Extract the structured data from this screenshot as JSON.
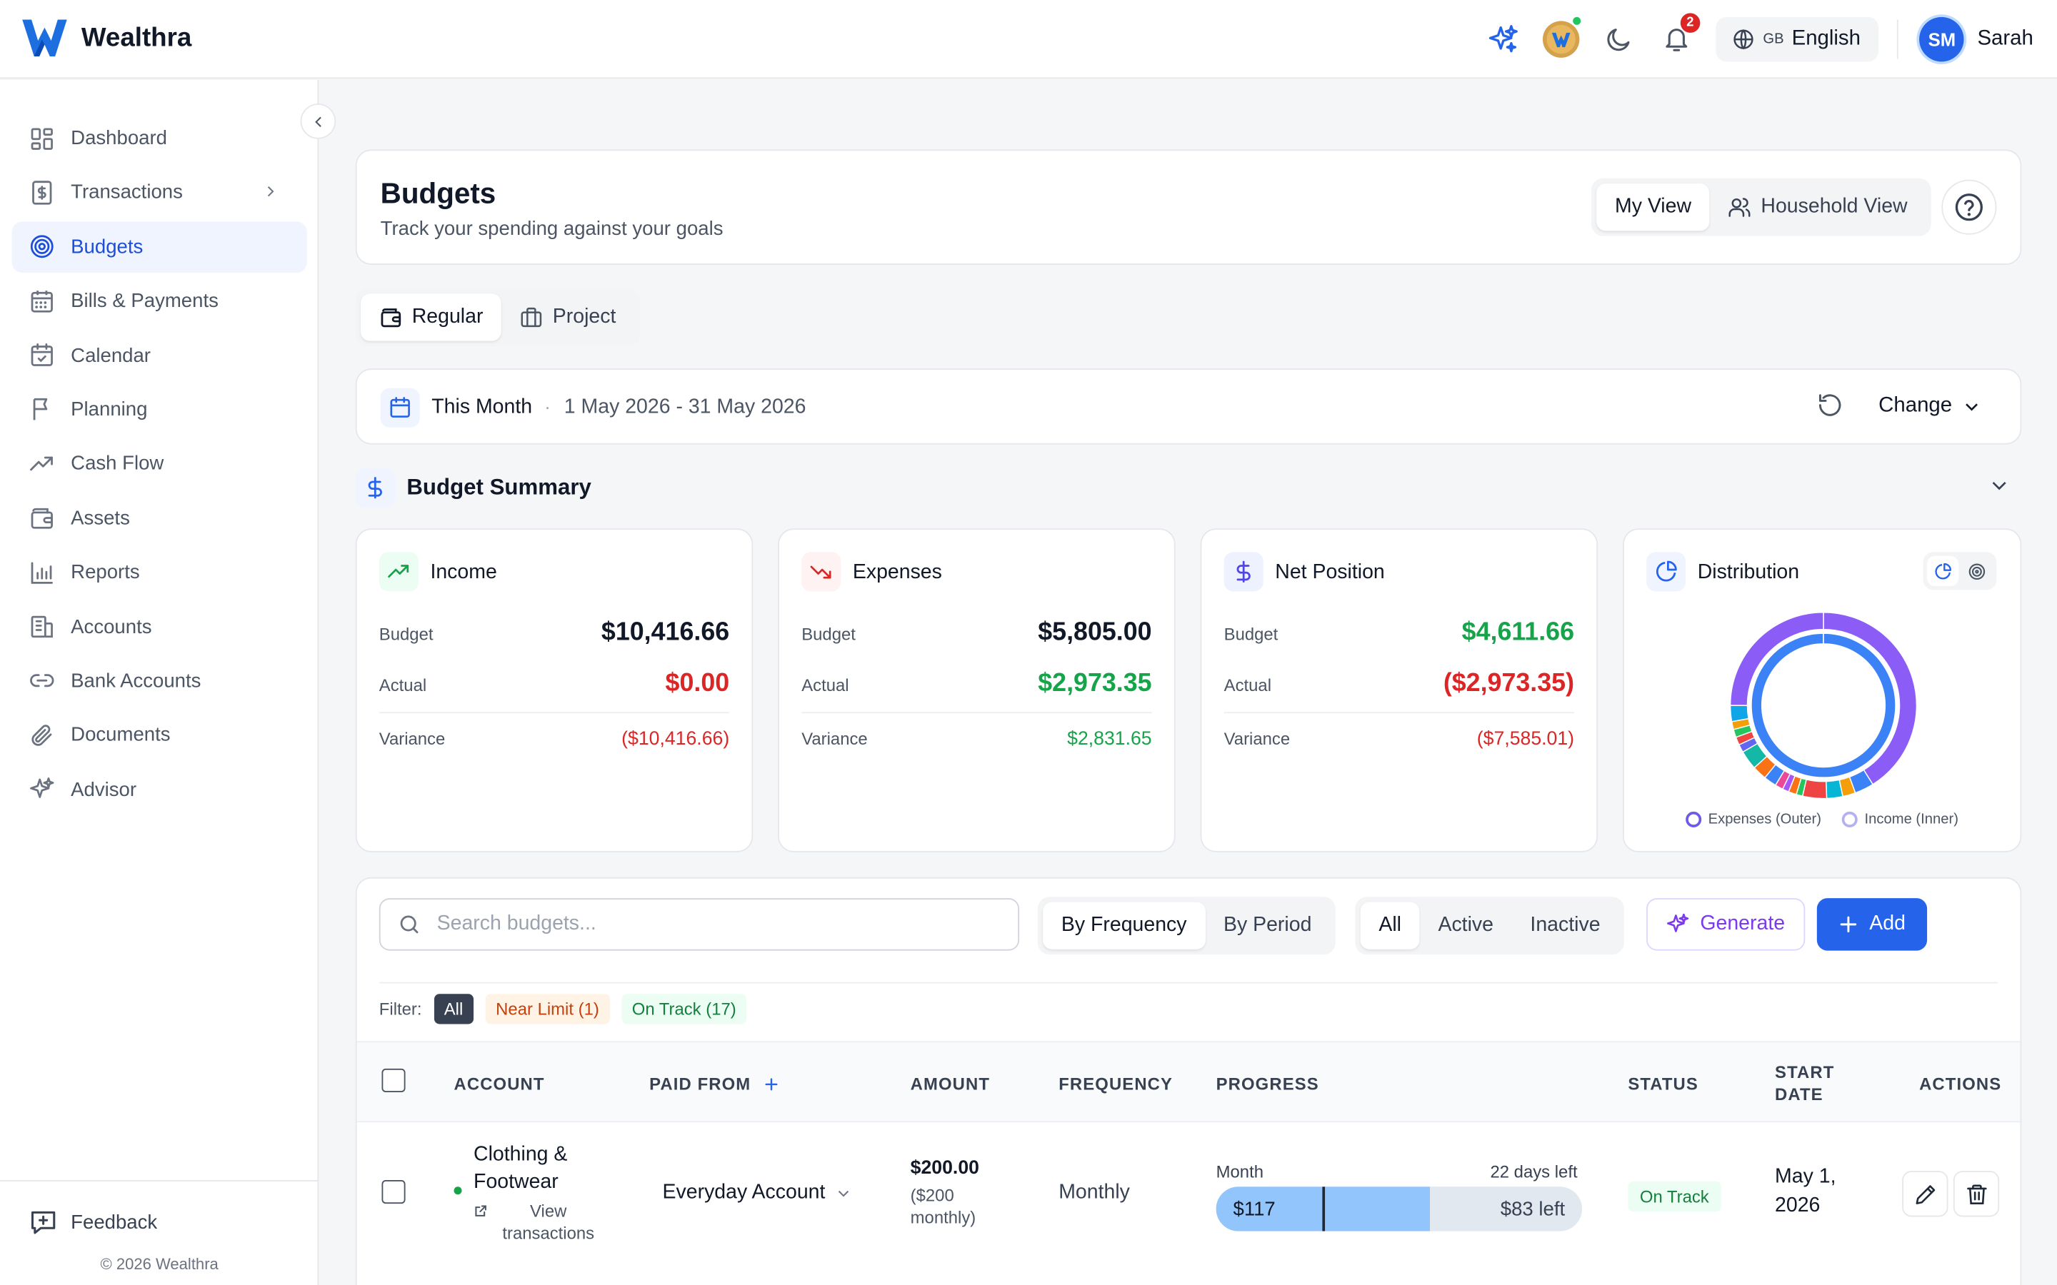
{
  "app": {
    "name": "Wealthra"
  },
  "header": {
    "notifications_count": "2",
    "language_flag": "GB",
    "language": "English",
    "user_initials": "SM",
    "user_name": "Sarah"
  },
  "sidebar": {
    "items": [
      {
        "label": "Dashboard",
        "icon": "dashboard-icon"
      },
      {
        "label": "Transactions",
        "icon": "receipt-icon"
      },
      {
        "label": "Budgets",
        "icon": "target-icon"
      },
      {
        "label": "Bills & Payments",
        "icon": "calculator-icon"
      },
      {
        "label": "Calendar",
        "icon": "calendar-check-icon"
      },
      {
        "label": "Planning",
        "icon": "flag-icon"
      },
      {
        "label": "Cash Flow",
        "icon": "trend-up-icon"
      },
      {
        "label": "Assets",
        "icon": "wallet-icon"
      },
      {
        "label": "Reports",
        "icon": "bar-chart-icon"
      },
      {
        "label": "Accounts",
        "icon": "building-icon"
      },
      {
        "label": "Bank Accounts",
        "icon": "link-icon"
      },
      {
        "label": "Documents",
        "icon": "paperclip-icon"
      },
      {
        "label": "Advisor",
        "icon": "sparkles-icon"
      }
    ],
    "active_index": 2,
    "feedback": "Feedback",
    "copyright": "© 2026 Wealthra"
  },
  "page": {
    "title": "Budgets",
    "subtitle": "Track your spending against your goals",
    "view_toggle": {
      "my_view": "My View",
      "household_view": "Household View",
      "selected": "My View"
    }
  },
  "budget_type": {
    "regular": "Regular",
    "project": "Project",
    "selected": "Regular"
  },
  "period": {
    "label": "This Month",
    "separator": "·",
    "range": "1 May 2026 - 31 May 2026",
    "change": "Change"
  },
  "summary": {
    "title": "Budget Summary",
    "cards": [
      {
        "title": "Income",
        "budget_label": "Budget",
        "budget": "$10,416.66",
        "actual_label": "Actual",
        "actual": "$0.00",
        "variance_label": "Variance",
        "variance": "($10,416.66)"
      },
      {
        "title": "Expenses",
        "budget_label": "Budget",
        "budget": "$5,805.00",
        "actual_label": "Actual",
        "actual": "$2,973.35",
        "variance_label": "Variance",
        "variance": "$2,831.65"
      },
      {
        "title": "Net Position",
        "budget_label": "Budget",
        "budget": "$4,611.66",
        "actual_label": "Actual",
        "actual": "($2,973.35)",
        "variance_label": "Variance",
        "variance": "($7,585.01)"
      }
    ],
    "distribution": {
      "title": "Distribution",
      "legend_outer": "Expenses (Outer)",
      "legend_inner": "Income (Inner)"
    }
  },
  "table": {
    "search_placeholder": "Search budgets...",
    "group_toggle": {
      "by_frequency": "By Frequency",
      "by_period": "By Period",
      "selected": "By Frequency"
    },
    "state_toggle": {
      "all": "All",
      "active": "Active",
      "inactive": "Inactive",
      "selected": "All"
    },
    "generate": "Generate",
    "add": "Add",
    "filter": {
      "label": "Filter:",
      "all": "All",
      "near_limit": "Near Limit (1)",
      "on_track": "On Track (17)"
    },
    "columns": {
      "account": "ACCOUNT",
      "paid_from": "PAID FROM",
      "amount": "AMOUNT",
      "frequency": "FREQUENCY",
      "progress": "PROGRESS",
      "status": "STATUS",
      "start_date": "START DATE",
      "actions": "ACTIONS"
    },
    "rows": [
      {
        "account": "Clothing & Footwear",
        "view_transactions": "View transactions",
        "paid_from": "Everyday Account",
        "amount": "$200.00",
        "amount_sub": "($200 monthly)",
        "frequency": "Monthly",
        "progress_label": "Month",
        "days_left": "22 days left",
        "spent": "$117",
        "remaining": "$83 left",
        "progress_fraction": 0.585,
        "time_elapsed_fraction": 0.29,
        "status": "On Track",
        "start_date": "May 1, 2026"
      }
    ]
  },
  "colors": {
    "accent": "#2563eb",
    "positive": "#16a34a",
    "negative": "#dc2626",
    "violet": "#7c3aed"
  }
}
